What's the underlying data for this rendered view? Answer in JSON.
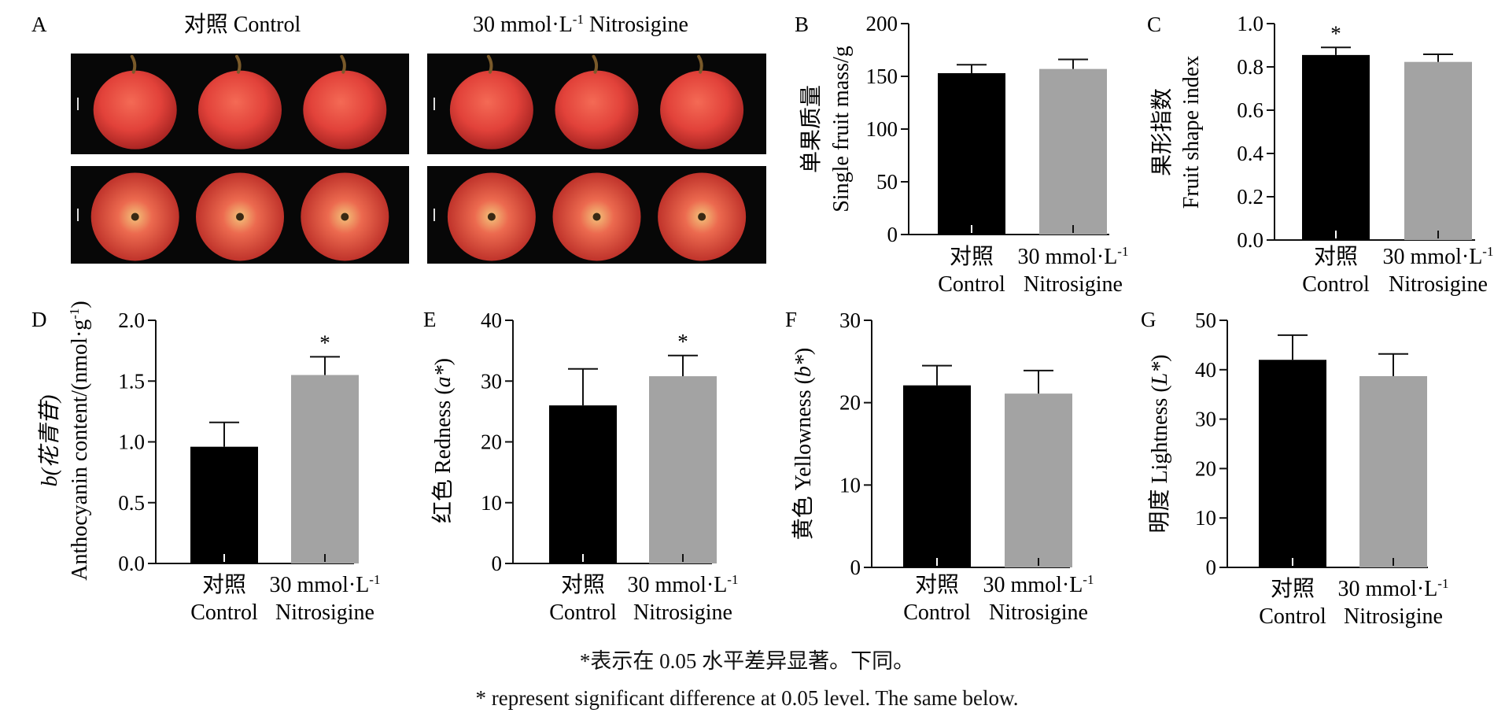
{
  "panel_a": {
    "letter": "A",
    "control_title": "对照 Control",
    "treat_title_main": "30 mmol·L",
    "treat_title_sup": "-1",
    "treat_title_tail": " Nitrosigine",
    "fruit_color": "#e2423a"
  },
  "caption": {
    "cn": "*表示在 0.05 水平差异显著。下同。",
    "en": "* represent significant difference at 0.05 level. The same below."
  },
  "colors": {
    "control": "#000000",
    "treatment": "#a3a3a3"
  },
  "chart_data": [
    {
      "id": "B",
      "type": "bar",
      "categories": [
        {
          "cn": "对照",
          "en": "Control"
        },
        {
          "cn": "30 mmol·L",
          "sup": "-1",
          "en": "Nitrosigine"
        }
      ],
      "values": [
        153,
        157
      ],
      "errors": [
        8,
        9
      ],
      "significance": [
        "",
        ""
      ],
      "ylabel_cn": "单果质量",
      "ylabel_en": "Single fruit mass/g",
      "ylim": [
        0,
        200
      ],
      "yticks": [
        "0",
        "50",
        "100",
        "150",
        "200"
      ]
    },
    {
      "id": "C",
      "type": "bar",
      "categories": [
        {
          "cn": "对照",
          "en": "Control"
        },
        {
          "cn": "30 mmol·L",
          "sup": "-1",
          "en": "Nitrosigine"
        }
      ],
      "values": [
        0.855,
        0.823
      ],
      "errors": [
        0.035,
        0.035
      ],
      "significance": [
        "*",
        ""
      ],
      "ylabel_cn": "果形指数",
      "ylabel_en": "Fruit shape index",
      "ylim": [
        0,
        1.0
      ],
      "yticks": [
        "0.0",
        "0.2",
        "0.4",
        "0.6",
        "0.8",
        "1.0"
      ]
    },
    {
      "id": "D",
      "type": "bar",
      "categories": [
        {
          "cn": "对照",
          "en": "Control"
        },
        {
          "cn": "30 mmol·L",
          "sup": "-1",
          "en": "Nitrosigine"
        }
      ],
      "values": [
        0.96,
        1.55
      ],
      "errors": [
        0.2,
        0.15
      ],
      "significance": [
        "",
        "*"
      ],
      "ylabel_1": "b(花青苷)",
      "ylabel_2": "Anthocyanin content/(nmol·g",
      "ylabel_2_sup": "-1",
      "ylabel_2_tail": ")",
      "ylim": [
        0,
        2.0
      ],
      "yticks": [
        "0.0",
        "0.5",
        "1.0",
        "1.5",
        "2.0"
      ]
    },
    {
      "id": "E",
      "type": "bar",
      "categories": [
        {
          "cn": "对照",
          "en": "Control"
        },
        {
          "cn": "30 mmol·L",
          "sup": "-1",
          "en": "Nitrosigine"
        }
      ],
      "values": [
        26,
        30.8
      ],
      "errors": [
        6,
        3.4
      ],
      "significance": [
        "",
        "*"
      ],
      "ylabel_main": "红色 Redness (",
      "ylabel_ital": "a*",
      "ylabel_tail": ")",
      "ylim": [
        0,
        40
      ],
      "yticks": [
        "0",
        "10",
        "20",
        "30",
        "40"
      ]
    },
    {
      "id": "F",
      "type": "bar",
      "categories": [
        {
          "cn": "对照",
          "en": "Control"
        },
        {
          "cn": "30 mmol·L",
          "sup": "-1",
          "en": "Nitrosigine"
        }
      ],
      "values": [
        22.1,
        21.1
      ],
      "errors": [
        2.4,
        2.8
      ],
      "significance": [
        "",
        ""
      ],
      "ylabel_main": "黄色 Yellowness (",
      "ylabel_ital": "b*",
      "ylabel_tail": ")",
      "ylim": [
        0,
        30
      ],
      "yticks": [
        "0",
        "10",
        "20",
        "30"
      ]
    },
    {
      "id": "G",
      "type": "bar",
      "categories": [
        {
          "cn": "对照",
          "en": "Control"
        },
        {
          "cn": "30 mmol·L",
          "sup": "-1",
          "en": "Nitrosigine"
        }
      ],
      "values": [
        42,
        38.7
      ],
      "errors": [
        5,
        4.5
      ],
      "significance": [
        "",
        ""
      ],
      "ylabel_main": "明度 Lightness (",
      "ylabel_ital": "L*",
      "ylabel_tail": ")",
      "ylim": [
        0,
        50
      ],
      "yticks": [
        "0",
        "10",
        "20",
        "30",
        "40",
        "50"
      ]
    }
  ]
}
